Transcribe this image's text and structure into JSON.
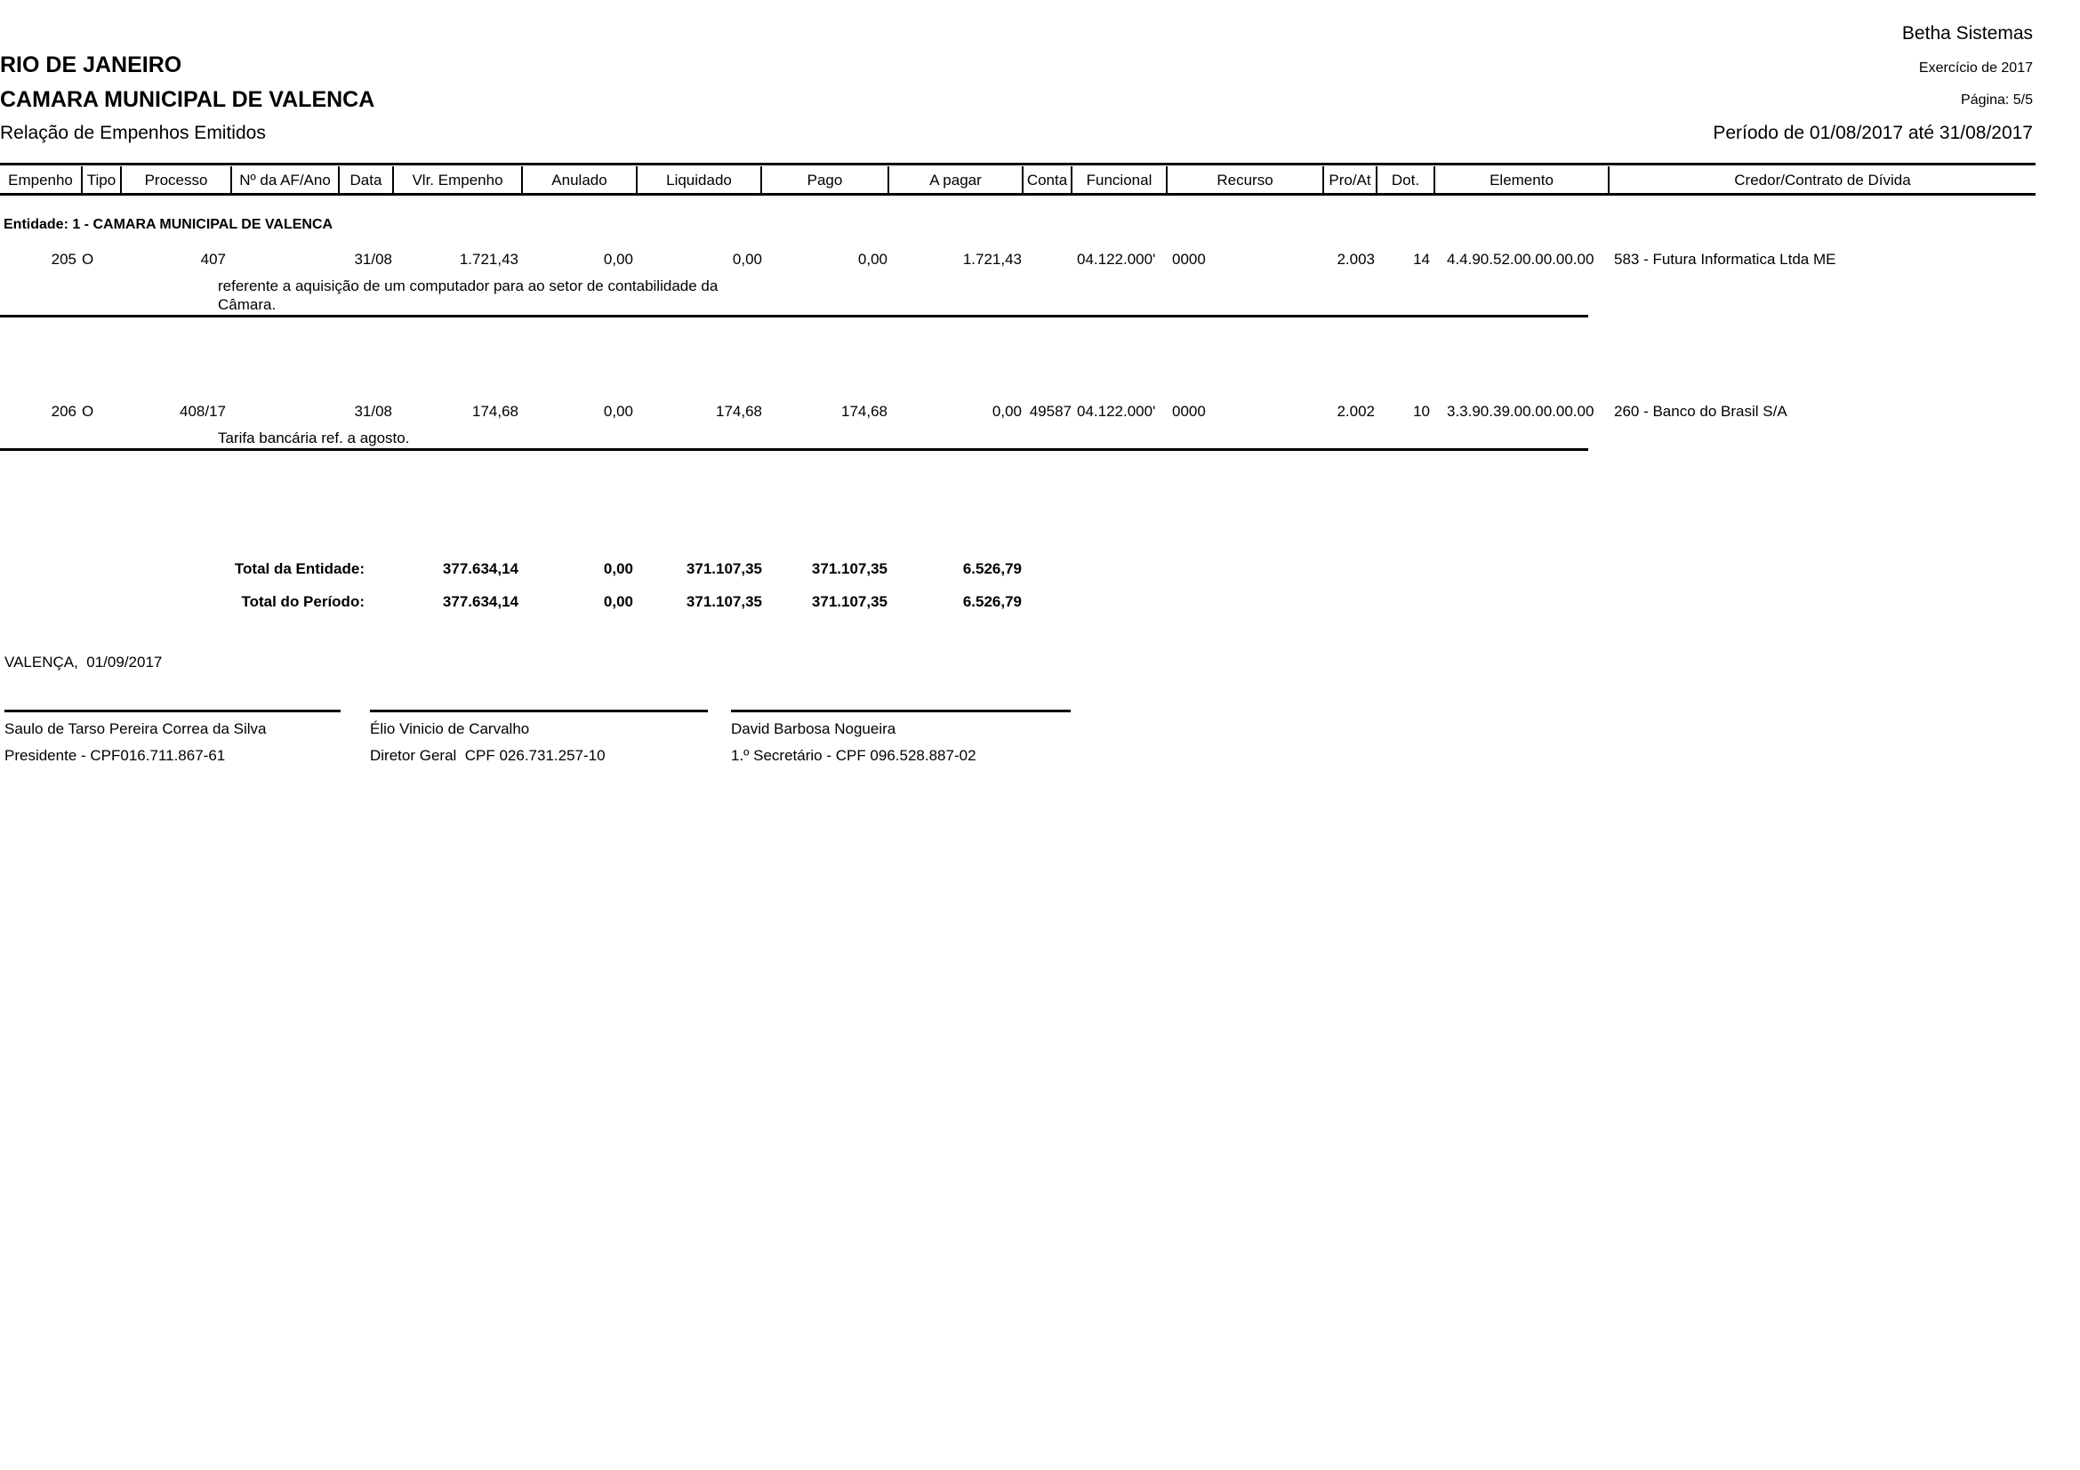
{
  "header": {
    "system": "Betha Sistemas",
    "state": "RIO DE JANEIRO",
    "entity": "CAMARA MUNICIPAL DE VALENCA",
    "report_title": "Relação de Empenhos Emitidos",
    "exercise": "Exercício de 2017",
    "page": "Página: 5/5",
    "period": "Período de 01/08/2017 até 31/08/2017"
  },
  "columns": [
    "Empenho",
    "Tipo",
    "Processo",
    "Nº da AF/Ano",
    "Data",
    "Vlr. Empenho",
    "Anulado",
    "Liquidado",
    "Pago",
    "A pagar",
    "Conta",
    "Funcional",
    "Recurso",
    "Pro/At",
    "Dot.",
    "Elemento",
    "Credor/Contrato de Dívida"
  ],
  "entity_group": "Entidade: 1 - CAMARA MUNICIPAL DE VALENCA",
  "rows": [
    {
      "empenho": "205",
      "tipo": "O",
      "processo": "407",
      "data": "31/08",
      "vlr_empenho": "1.721,43",
      "anulado": "0,00",
      "liquidado": "0,00",
      "pago": "0,00",
      "a_pagar": "1.721,43",
      "conta": "",
      "funcional": "04.122.000'",
      "recurso": "0000",
      "pro_at": "2.003",
      "dot": "14",
      "elemento": "4.4.90.52.00.00.00.00",
      "credor": "583 - Futura Informatica Ltda ME",
      "descricao_1": "referente a aquisição de um computador para ao setor de contabilidade da",
      "descricao_2": "Câmara."
    },
    {
      "empenho": "206",
      "tipo": "O",
      "processo": "408/17",
      "data": "31/08",
      "vlr_empenho": "174,68",
      "anulado": "0,00",
      "liquidado": "174,68",
      "pago": "174,68",
      "a_pagar": "0,00",
      "conta": "49587",
      "funcional": "04.122.000'",
      "recurso": "0000",
      "pro_at": "2.002",
      "dot": "10",
      "elemento": "3.3.90.39.00.00.00.00",
      "credor": "260 - Banco do Brasil S/A",
      "descricao_1": "Tarifa bancária ref. a agosto.",
      "descricao_2": ""
    }
  ],
  "totals": [
    {
      "label": "Total da Entidade:",
      "vlr_empenho": "377.634,14",
      "anulado": "0,00",
      "liquidado": "371.107,35",
      "pago": "371.107,35",
      "a_pagar": "6.526,79"
    },
    {
      "label": "Total do Período:",
      "vlr_empenho": "377.634,14",
      "anulado": "0,00",
      "liquidado": "371.107,35",
      "pago": "371.107,35",
      "a_pagar": "6.526,79"
    }
  ],
  "place_date": "VALENÇA,  01/09/2017",
  "signatures": [
    {
      "name": "Saulo de Tarso Pereira Correa da Silva",
      "role": "Presidente - CPF016.711.867-61"
    },
    {
      "name": "Élio Vinicio de Carvalho",
      "role": "Diretor Geral  CPF 026.731.257-10"
    },
    {
      "name": "David Barbosa Nogueira",
      "role": "1.º Secretário - CPF 096.528.887-02"
    }
  ]
}
